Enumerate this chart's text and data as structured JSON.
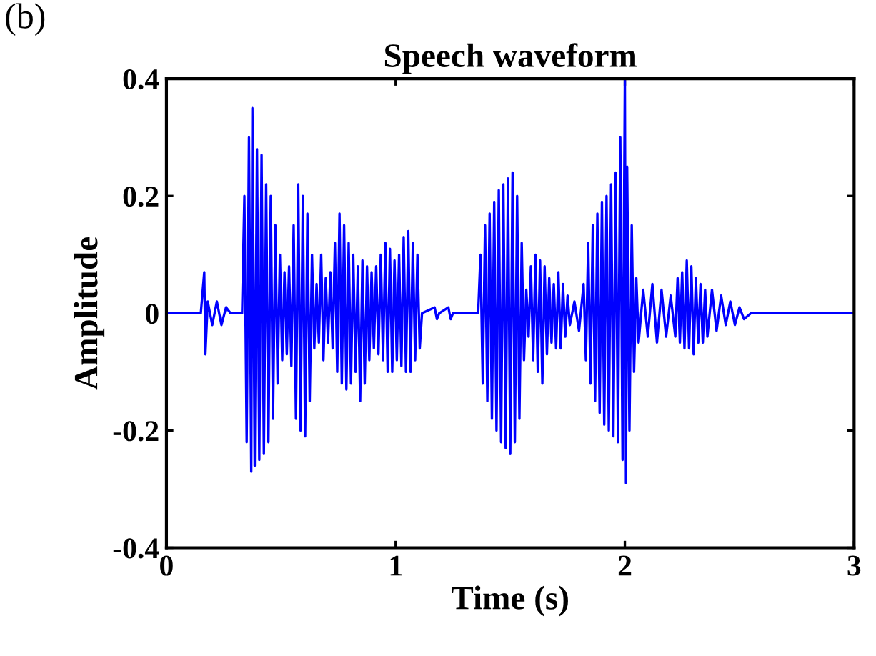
{
  "chart_data": {
    "type": "line",
    "title": "Speech waveform",
    "xlabel": "Time (s)",
    "ylabel": "Amplitude",
    "annotations": [
      "(b)"
    ],
    "xlim": [
      0,
      3
    ],
    "xticks": [
      0,
      1,
      2,
      3
    ],
    "ylim": [
      -0.4,
      0.4
    ],
    "yticks": [
      -0.4,
      -0.2,
      0,
      0.2,
      0.4
    ],
    "grid": false,
    "legend": false,
    "marker": "none",
    "line_style": "solid",
    "series": [
      {
        "color": "#0000ff",
        "x": [
          0,
          0.15,
          0.165,
          0.17,
          0.18,
          0.2,
          0.22,
          0.24,
          0.26,
          0.28,
          0.33,
          0.34,
          0.35,
          0.36,
          0.37,
          0.375,
          0.385,
          0.395,
          0.405,
          0.415,
          0.425,
          0.435,
          0.445,
          0.455,
          0.465,
          0.475,
          0.485,
          0.495,
          0.505,
          0.515,
          0.525,
          0.535,
          0.545,
          0.555,
          0.565,
          0.575,
          0.585,
          0.595,
          0.605,
          0.615,
          0.625,
          0.635,
          0.645,
          0.655,
          0.665,
          0.675,
          0.685,
          0.695,
          0.705,
          0.715,
          0.725,
          0.735,
          0.745,
          0.755,
          0.765,
          0.775,
          0.785,
          0.795,
          0.805,
          0.815,
          0.825,
          0.835,
          0.845,
          0.855,
          0.865,
          0.875,
          0.885,
          0.895,
          0.905,
          0.915,
          0.925,
          0.935,
          0.945,
          0.955,
          0.965,
          0.975,
          0.985,
          0.995,
          1.005,
          1.015,
          1.025,
          1.035,
          1.045,
          1.055,
          1.065,
          1.075,
          1.085,
          1.095,
          1.105,
          1.115,
          1.17,
          1.18,
          1.19,
          1.23,
          1.24,
          1.25,
          1.36,
          1.37,
          1.38,
          1.39,
          1.4,
          1.41,
          1.42,
          1.43,
          1.44,
          1.45,
          1.46,
          1.47,
          1.48,
          1.49,
          1.5,
          1.51,
          1.52,
          1.53,
          1.54,
          1.55,
          1.56,
          1.57,
          1.58,
          1.59,
          1.6,
          1.61,
          1.62,
          1.63,
          1.64,
          1.65,
          1.66,
          1.67,
          1.68,
          1.69,
          1.7,
          1.71,
          1.72,
          1.73,
          1.74,
          1.75,
          1.76,
          1.78,
          1.8,
          1.82,
          1.83,
          1.84,
          1.85,
          1.86,
          1.87,
          1.88,
          1.89,
          1.9,
          1.91,
          1.92,
          1.93,
          1.94,
          1.95,
          1.96,
          1.97,
          1.98,
          1.99,
          2.0,
          2.005,
          2.01,
          2.02,
          2.03,
          2.04,
          2.05,
          2.06,
          2.08,
          2.1,
          2.12,
          2.14,
          2.16,
          2.18,
          2.2,
          2.22,
          2.23,
          2.24,
          2.25,
          2.26,
          2.27,
          2.28,
          2.29,
          2.3,
          2.31,
          2.32,
          2.33,
          2.34,
          2.35,
          2.36,
          2.38,
          2.4,
          2.42,
          2.44,
          2.46,
          2.48,
          2.5,
          2.52,
          2.55,
          3.0
        ],
        "values": [
          0,
          0,
          0.07,
          -0.07,
          0.02,
          -0.02,
          0.02,
          -0.02,
          0.01,
          0,
          0,
          0.2,
          -0.22,
          0.3,
          -0.27,
          0.35,
          -0.26,
          0.28,
          -0.25,
          0.27,
          -0.24,
          0.22,
          -0.22,
          0.2,
          -0.18,
          0.15,
          -0.12,
          0.1,
          -0.08,
          0.07,
          -0.07,
          0.08,
          -0.09,
          0.15,
          -0.18,
          0.22,
          -0.2,
          0.2,
          -0.21,
          0.17,
          -0.15,
          0.1,
          -0.06,
          0.05,
          -0.05,
          0.1,
          -0.08,
          0.06,
          -0.05,
          0.07,
          -0.06,
          0.12,
          -0.1,
          0.17,
          -0.12,
          0.15,
          -0.13,
          0.12,
          -0.12,
          0.1,
          -0.1,
          0.08,
          -0.15,
          0.09,
          -0.12,
          0.08,
          -0.08,
          0.07,
          -0.06,
          0.08,
          -0.07,
          0.1,
          -0.08,
          0.12,
          -0.1,
          0.11,
          -0.1,
          0.09,
          -0.08,
          0.1,
          -0.09,
          0.13,
          -0.1,
          0.14,
          -0.1,
          0.12,
          -0.08,
          0.1,
          -0.06,
          0,
          0.01,
          -0.01,
          0,
          0.01,
          -0.01,
          0,
          0,
          0.1,
          -0.12,
          0.15,
          -0.15,
          0.17,
          -0.18,
          0.19,
          -0.2,
          0.21,
          -0.22,
          0.22,
          -0.23,
          0.23,
          -0.24,
          0.24,
          -0.22,
          0.2,
          -0.18,
          0.12,
          -0.08,
          0.04,
          -0.04,
          0.08,
          -0.08,
          0.1,
          -0.1,
          0.09,
          -0.12,
          0.08,
          -0.07,
          0.06,
          -0.05,
          0.05,
          -0.06,
          0.07,
          -0.06,
          0.05,
          -0.04,
          0.03,
          -0.02,
          0.02,
          -0.03,
          0.05,
          -0.08,
          0.12,
          -0.12,
          0.15,
          -0.15,
          0.17,
          -0.17,
          0.19,
          -0.19,
          0.2,
          -0.2,
          0.22,
          -0.21,
          0.24,
          -0.22,
          0.3,
          -0.25,
          0.4,
          -0.29,
          0.25,
          -0.2,
          0.15,
          -0.1,
          0.06,
          -0.05,
          0.04,
          -0.04,
          0.05,
          -0.05,
          0.04,
          -0.04,
          0.03,
          -0.04,
          0.06,
          -0.05,
          0.07,
          -0.06,
          0.09,
          -0.06,
          0.08,
          -0.07,
          0.06,
          -0.05,
          0.05,
          -0.05,
          0.04,
          -0.04,
          0.04,
          -0.03,
          0.03,
          -0.02,
          0.02,
          -0.02,
          0.01,
          -0.01,
          0,
          0
        ]
      }
    ]
  }
}
